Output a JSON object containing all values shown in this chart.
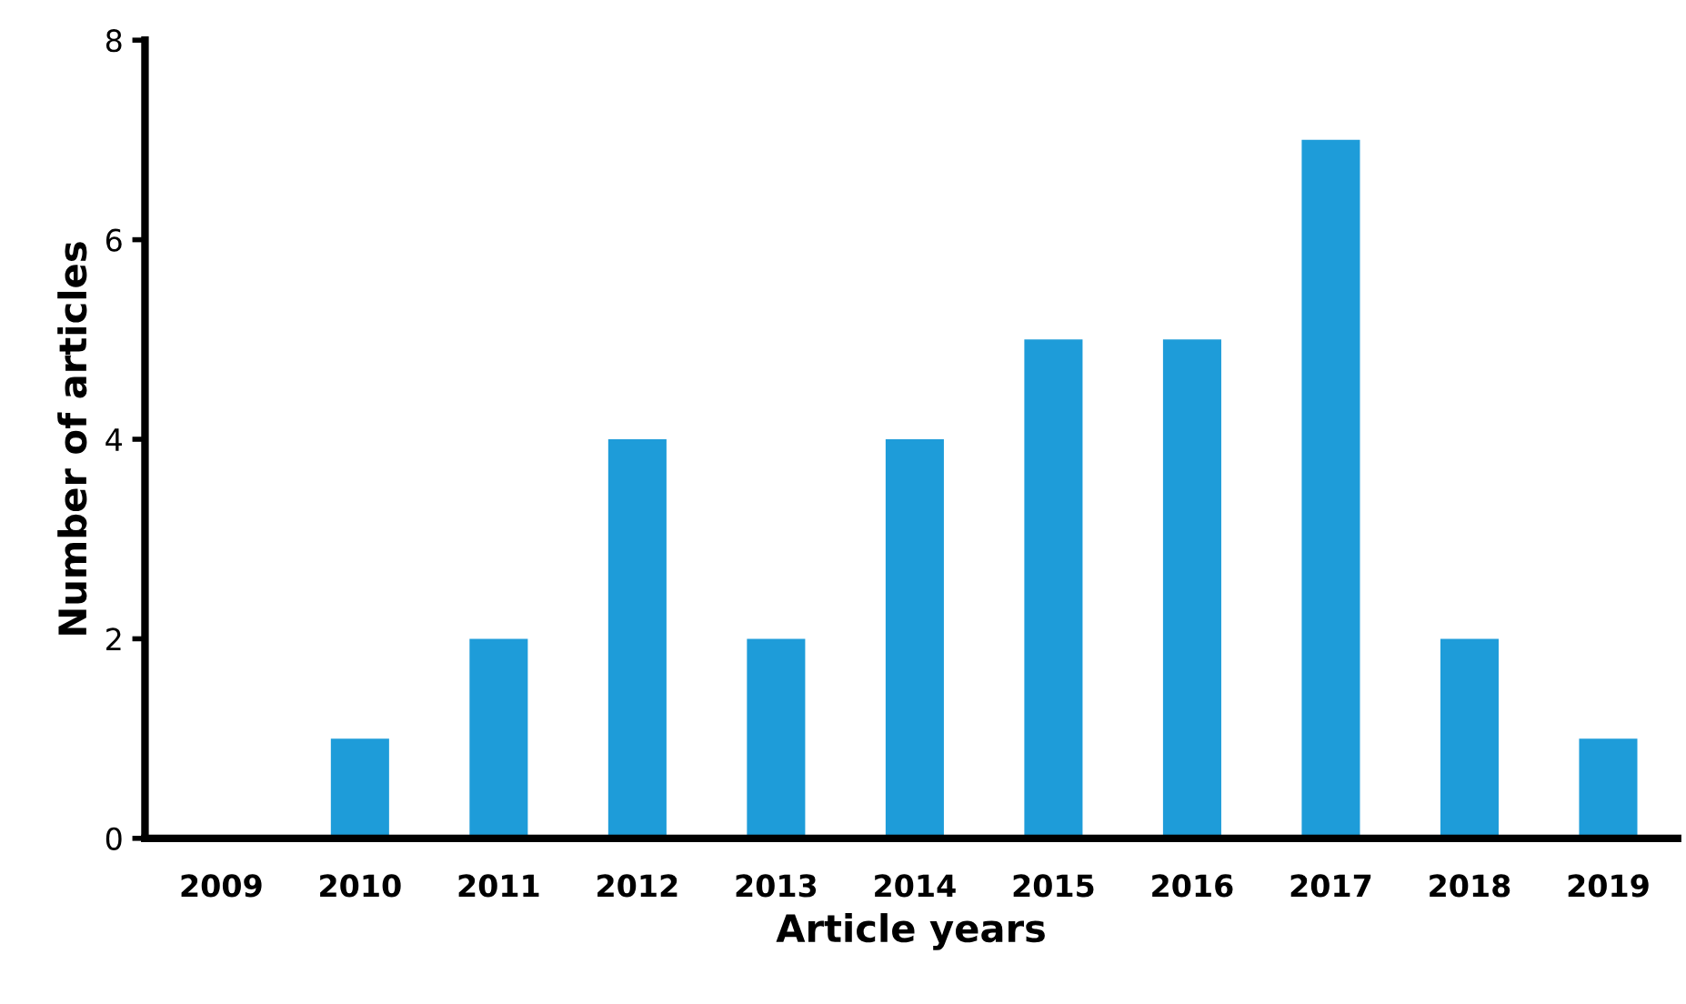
{
  "chart_data": {
    "type": "bar",
    "xlabel": "Article years",
    "ylabel": "Number of articles",
    "categories": [
      "2009",
      "2010",
      "2011",
      "2012",
      "2013",
      "2014",
      "2015",
      "2016",
      "2017",
      "2018",
      "2019"
    ],
    "values": [
      0,
      1,
      2,
      4,
      2,
      4,
      5,
      5,
      7,
      2,
      1
    ],
    "color": "#1e9cd9",
    "ylim": [
      0,
      8
    ],
    "yticks": [
      0,
      2,
      4,
      6,
      8
    ],
    "grid": false,
    "legend": false
  }
}
